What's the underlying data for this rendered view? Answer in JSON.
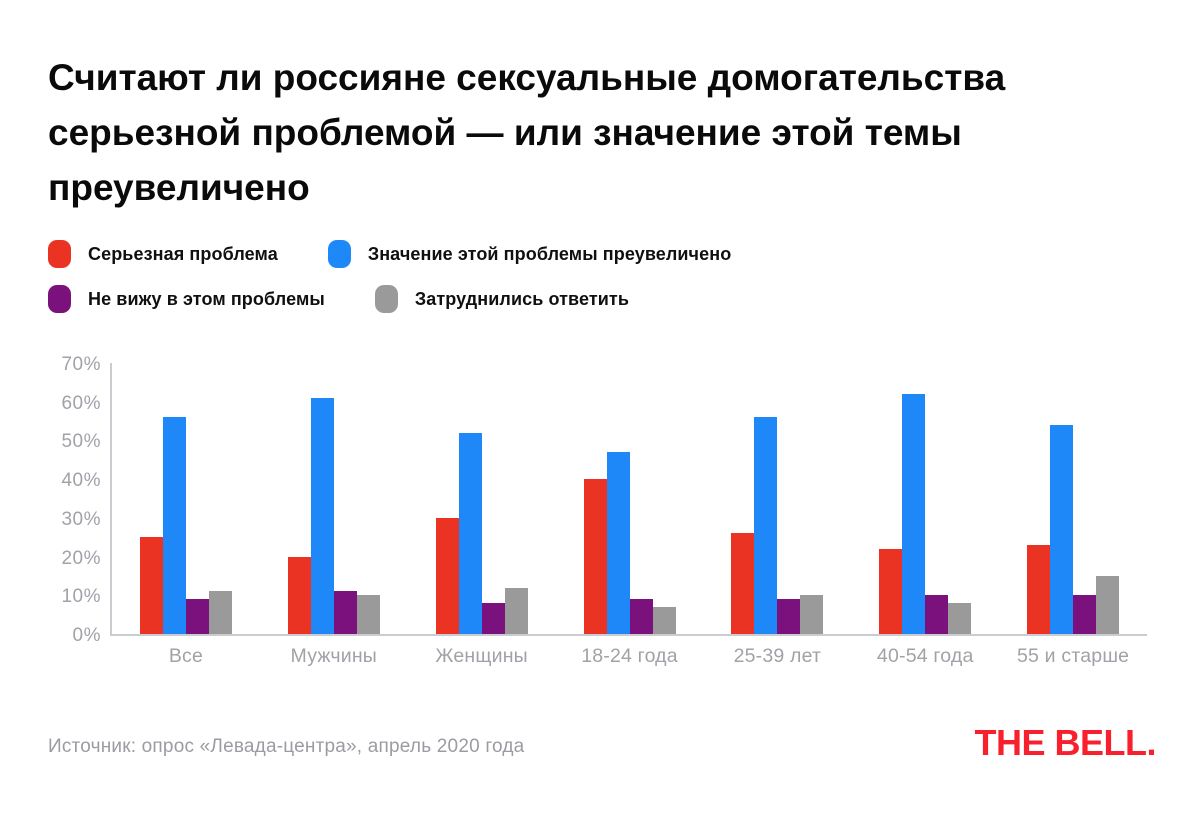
{
  "header": {
    "title_display": "Считают ли россияне сексуальные домогательства\nсерьезной проблемой — или значение этой темы\nпреувеличено"
  },
  "footer": {
    "source": "Источник: опрос «Левада-центра», апрель 2020 года",
    "logo_text": "THE BELL."
  },
  "colors": {
    "serious_problem": "#ea3323",
    "exaggerated": "#1e88f8",
    "no_problem": "#7a117d",
    "hard_to_answer": "#9a9a9a",
    "logo_red": "#f8202c",
    "axis_text": "#a1a2a8",
    "axis_line": "#cbccd1"
  },
  "chart_data": {
    "type": "bar",
    "title": "Считают ли россияне сексуальные домогательства серьезной проблемой — или значение этой темы преувеличено",
    "categories": [
      "Все",
      "Мужчины",
      "Женщины",
      "18-24 года",
      "25-39 лет",
      "40-54 года",
      "55 и старше"
    ],
    "series": [
      {
        "id": "serious-problem",
        "name": "Серьезная проблема",
        "color": "#ea3323",
        "values": [
          25,
          20,
          30,
          40,
          26,
          22,
          23
        ]
      },
      {
        "id": "exaggerated",
        "name": "Значение этой проблемы преувеличено",
        "color": "#1e88f8",
        "values": [
          56,
          61,
          52,
          47,
          56,
          62,
          54
        ]
      },
      {
        "id": "no-problem",
        "name": "Не вижу в этом проблемы",
        "color": "#7a117d",
        "values": [
          9,
          11,
          8,
          9,
          9,
          10,
          10
        ]
      },
      {
        "id": "hard-to-answer",
        "name": "Затруднились ответить",
        "color": "#9a9a9a",
        "values": [
          11,
          10,
          12,
          7,
          10,
          8,
          15
        ]
      }
    ],
    "ylabel": "",
    "xlabel": "",
    "ylim": [
      0,
      70
    ],
    "y_ticks": [
      "0%",
      "10%",
      "20%",
      "30%",
      "40%",
      "50%",
      "60%",
      "70%"
    ],
    "y_tick_step": 10,
    "grid": false,
    "legend_position": "top-left",
    "legend_rows": [
      [
        0,
        1
      ],
      [
        2,
        3
      ]
    ]
  }
}
